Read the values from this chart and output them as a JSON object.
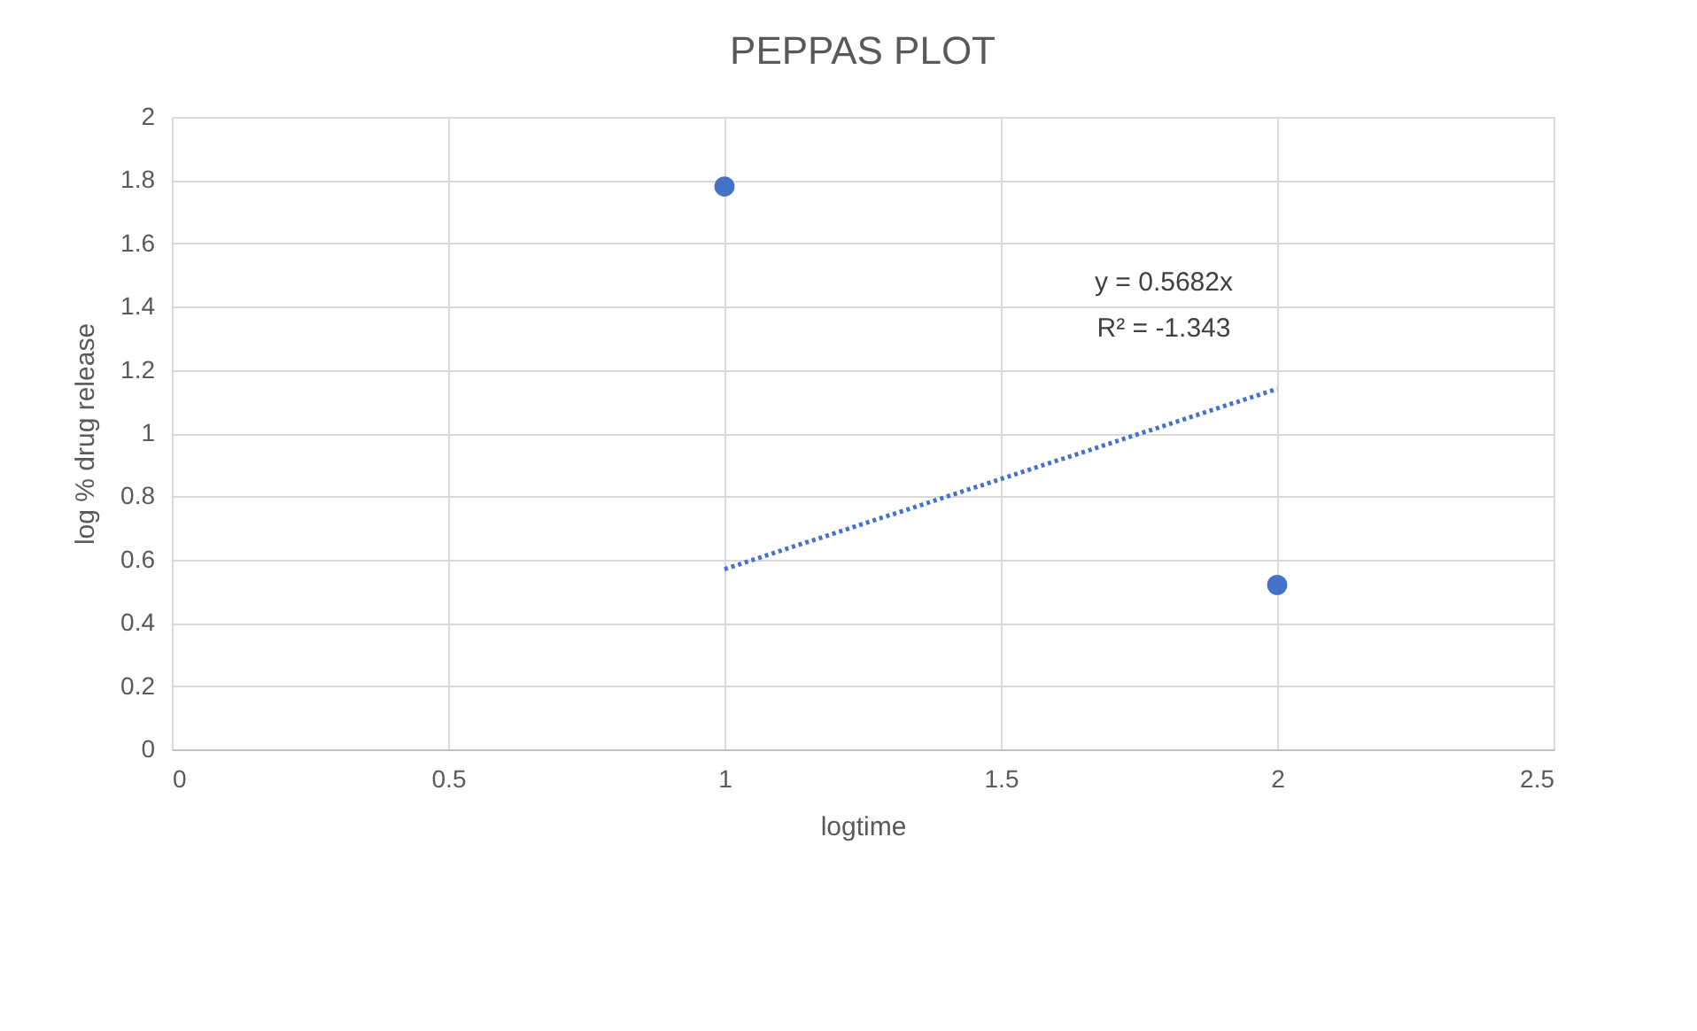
{
  "chart_data": {
    "type": "scatter",
    "title": "PEPPAS PLOT",
    "xlabel": "logtime",
    "ylabel": "log % drug release",
    "xlim": [
      0,
      2.5
    ],
    "xticks": [
      0,
      0.5,
      1,
      1.5,
      2,
      2.5
    ],
    "ylim": [
      0,
      2
    ],
    "yticks": [
      0,
      0.2,
      0.4,
      0.6,
      0.8,
      1,
      1.2,
      1.4,
      1.6,
      1.8,
      2
    ],
    "grid": true,
    "x": [
      1,
      2
    ],
    "series": [
      {
        "color": "#4472c4",
        "values": [
          1.78,
          0.52
        ],
        "marker": "circle"
      },
      {
        "type": "line",
        "color": "#4472c4",
        "values": [
          0.57,
          1.14
        ],
        "line_style": "dotted",
        "marker": "none"
      }
    ],
    "annotations": [
      "y = 0.5682x",
      "R² = -1.343"
    ]
  }
}
